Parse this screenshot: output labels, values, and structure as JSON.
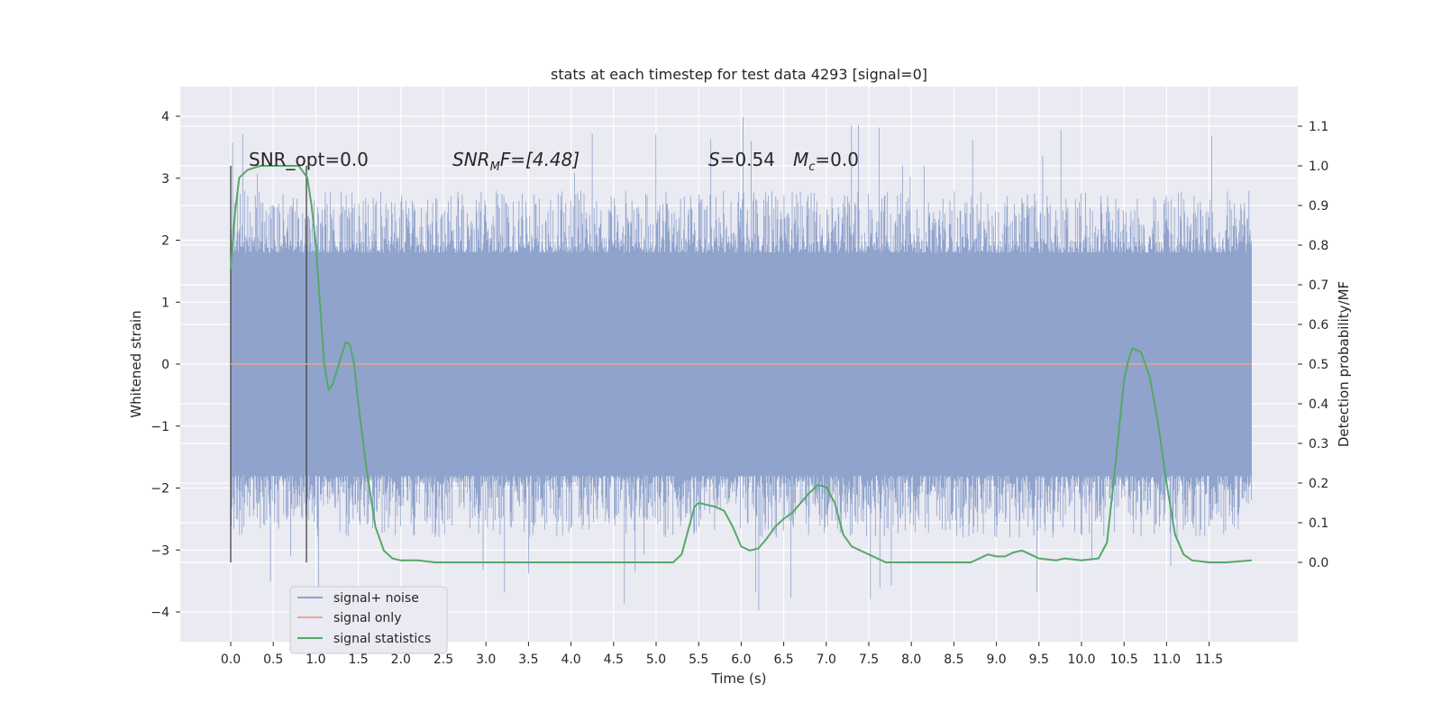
{
  "chart_data": {
    "type": "line",
    "title": "stats at each timestep for test data 4293 [signal=0]",
    "xlabel": "Time (s)",
    "ylabel": "Whitened strain",
    "y2label": "Detection probability/MF",
    "xlim": [
      -0.25,
      12.45
    ],
    "ylim": [
      -4.45,
      4.45
    ],
    "y2lim": [
      -0.195,
      1.1955
    ],
    "x_ticks": [
      "0.0",
      "0.5",
      "1.0",
      "1.5",
      "2.0",
      "2.5",
      "3.0",
      "3.5",
      "4.0",
      "4.5",
      "5.0",
      "5.5",
      "6.0",
      "6.5",
      "7.0",
      "7.5",
      "8.0",
      "8.5",
      "9.0",
      "9.5",
      "10.0",
      "10.5",
      "11.0",
      "11.5"
    ],
    "y_ticks": [
      "4",
      "3",
      "2",
      "1",
      "0",
      "−1",
      "−2",
      "−3",
      "−4"
    ],
    "y2_ticks": [
      "1.1",
      "1.0",
      "0.9",
      "0.8",
      "0.7",
      "0.6",
      "0.5",
      "0.4",
      "0.3",
      "0.2",
      "0.1",
      "0.0"
    ],
    "grid": true,
    "legend_position": "lower-left",
    "annotations": {
      "snr_opt": "SNR_opt=0.0",
      "snr_mf_main": "SNR",
      "snr_mf_sub": "M",
      "snr_mf_rest": "F=[4.48]",
      "s_main": "S",
      "s_rest": "=0.54",
      "mc_main": "M",
      "mc_sub": "c",
      "mc_rest": "=0.0"
    },
    "vertical_markers": [
      0.0,
      0.89
    ],
    "noise_range": {
      "x_start": 0.0,
      "x_end": 12.0,
      "typical_amplitude": 2.0,
      "peak_max": 4.1,
      "peak_min": -4.1
    },
    "series": [
      {
        "name": "signal+ noise",
        "color": "#8fa3cc"
      },
      {
        "name": "signal only",
        "color": "#e8a88e",
        "values": [
          [
            0.0,
            0.0
          ],
          [
            12.0,
            0.0
          ]
        ]
      },
      {
        "name": "signal statistics",
        "color": "#55a868",
        "axis": "right",
        "values": [
          [
            0.0,
            0.74
          ],
          [
            0.05,
            0.88
          ],
          [
            0.1,
            0.97
          ],
          [
            0.2,
            0.99
          ],
          [
            0.35,
            1.0
          ],
          [
            0.6,
            1.0
          ],
          [
            0.8,
            1.0
          ],
          [
            0.9,
            0.97
          ],
          [
            0.95,
            0.9
          ],
          [
            1.0,
            0.8
          ],
          [
            1.05,
            0.65
          ],
          [
            1.1,
            0.5
          ],
          [
            1.15,
            0.435
          ],
          [
            1.2,
            0.45
          ],
          [
            1.3,
            0.52
          ],
          [
            1.35,
            0.555
          ],
          [
            1.4,
            0.55
          ],
          [
            1.45,
            0.5
          ],
          [
            1.5,
            0.4
          ],
          [
            1.6,
            0.23
          ],
          [
            1.7,
            0.09
          ],
          [
            1.8,
            0.03
          ],
          [
            1.9,
            0.01
          ],
          [
            2.0,
            0.005
          ],
          [
            2.2,
            0.005
          ],
          [
            2.4,
            0.0
          ],
          [
            2.6,
            0.0
          ],
          [
            3.0,
            0.0
          ],
          [
            4.0,
            0.0
          ],
          [
            5.0,
            0.0
          ],
          [
            5.2,
            0.0
          ],
          [
            5.3,
            0.02
          ],
          [
            5.4,
            0.1
          ],
          [
            5.45,
            0.14
          ],
          [
            5.5,
            0.15
          ],
          [
            5.6,
            0.145
          ],
          [
            5.7,
            0.14
          ],
          [
            5.8,
            0.13
          ],
          [
            5.9,
            0.09
          ],
          [
            6.0,
            0.04
          ],
          [
            6.1,
            0.03
          ],
          [
            6.2,
            0.035
          ],
          [
            6.3,
            0.06
          ],
          [
            6.4,
            0.09
          ],
          [
            6.5,
            0.11
          ],
          [
            6.6,
            0.125
          ],
          [
            6.7,
            0.15
          ],
          [
            6.8,
            0.175
          ],
          [
            6.9,
            0.195
          ],
          [
            7.0,
            0.19
          ],
          [
            7.1,
            0.15
          ],
          [
            7.2,
            0.07
          ],
          [
            7.3,
            0.04
          ],
          [
            7.5,
            0.02
          ],
          [
            7.7,
            0.0
          ],
          [
            8.0,
            0.0
          ],
          [
            8.5,
            0.0
          ],
          [
            8.7,
            0.0
          ],
          [
            8.9,
            0.02
          ],
          [
            9.0,
            0.015
          ],
          [
            9.1,
            0.015
          ],
          [
            9.2,
            0.025
          ],
          [
            9.3,
            0.03
          ],
          [
            9.4,
            0.02
          ],
          [
            9.5,
            0.01
          ],
          [
            9.7,
            0.005
          ],
          [
            9.8,
            0.01
          ],
          [
            10.0,
            0.005
          ],
          [
            10.2,
            0.01
          ],
          [
            10.3,
            0.05
          ],
          [
            10.4,
            0.25
          ],
          [
            10.5,
            0.46
          ],
          [
            10.55,
            0.51
          ],
          [
            10.6,
            0.54
          ],
          [
            10.7,
            0.53
          ],
          [
            10.8,
            0.47
          ],
          [
            10.9,
            0.35
          ],
          [
            11.0,
            0.2
          ],
          [
            11.1,
            0.07
          ],
          [
            11.2,
            0.02
          ],
          [
            11.3,
            0.005
          ],
          [
            11.5,
            0.0
          ],
          [
            11.7,
            0.0
          ],
          [
            12.0,
            0.005
          ]
        ]
      }
    ]
  },
  "legend": {
    "items": [
      {
        "label": "signal+ noise",
        "color": "#8fa3cc"
      },
      {
        "label": "signal only",
        "color": "#e8a88e"
      },
      {
        "label": "signal statistics",
        "color": "#55a868"
      }
    ]
  }
}
